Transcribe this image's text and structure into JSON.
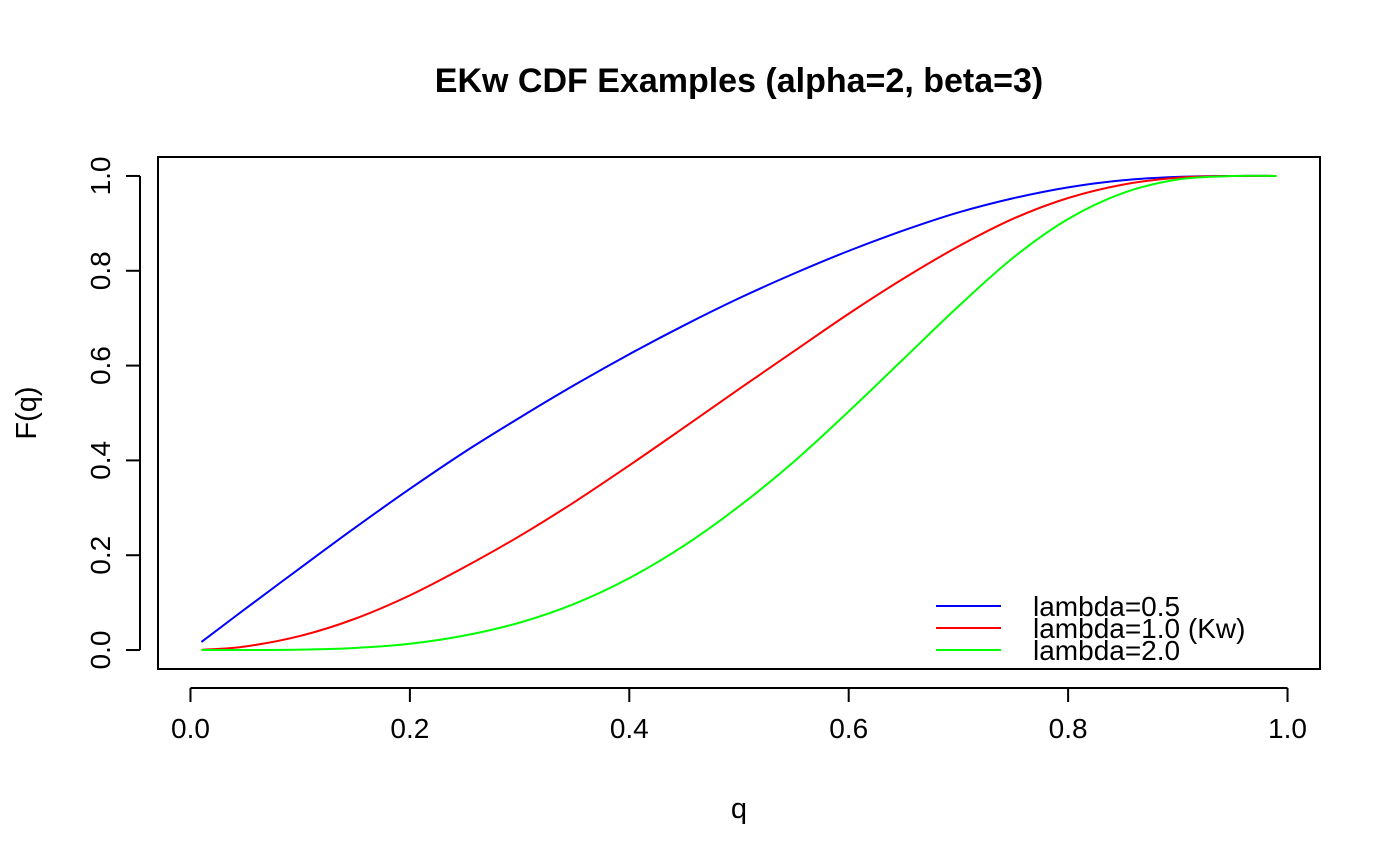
{
  "chart_data": {
    "type": "line",
    "title": "EKw CDF Examples (alpha=2, beta=3)",
    "xlabel": "q",
    "ylabel": "F(q)",
    "xlim": [
      -0.0296,
      1.0296
    ],
    "ylim": [
      -0.04,
      1.04
    ],
    "xticks": [
      "0.0",
      "0.2",
      "0.4",
      "0.6",
      "0.8",
      "1.0"
    ],
    "yticks": [
      "0.0",
      "0.2",
      "0.4",
      "0.6",
      "0.8",
      "1.0"
    ],
    "grid": false,
    "legend_position": "bottom-right",
    "x": [
      0.01,
      0.05,
      0.1,
      0.15,
      0.2,
      0.25,
      0.3,
      0.35,
      0.4,
      0.45,
      0.5,
      0.55,
      0.6,
      0.65,
      0.7,
      0.75,
      0.8,
      0.85,
      0.9,
      0.95,
      0.99
    ],
    "series": [
      {
        "name": "lambda=0.5",
        "color": "#0000ff",
        "values": [
          0.017,
          0.087,
          0.173,
          0.258,
          0.34,
          0.418,
          0.49,
          0.559,
          0.624,
          0.685,
          0.742,
          0.794,
          0.842,
          0.885,
          0.923,
          0.953,
          0.976,
          0.991,
          0.998,
          1.0,
          1.0
        ]
      },
      {
        "name": "lambda=1.0 (Kw)",
        "color": "#ff0000",
        "values": [
          0.0003,
          0.0075,
          0.0297,
          0.066,
          0.1153,
          0.1751,
          0.2404,
          0.3122,
          0.3895,
          0.4695,
          0.5505,
          0.6302,
          0.7094,
          0.7837,
          0.8514,
          0.9098,
          0.9535,
          0.9818,
          0.9963,
          0.9999,
          1.0
        ]
      },
      {
        "name": "lambda=2.0",
        "color": "#00ff00",
        "values": [
          0.0,
          0.0001,
          0.0009,
          0.0044,
          0.0133,
          0.0307,
          0.0578,
          0.0975,
          0.1517,
          0.2204,
          0.303,
          0.3972,
          0.5033,
          0.6142,
          0.7249,
          0.8277,
          0.9092,
          0.9639,
          0.9926,
          0.9998,
          1.0
        ]
      }
    ]
  }
}
